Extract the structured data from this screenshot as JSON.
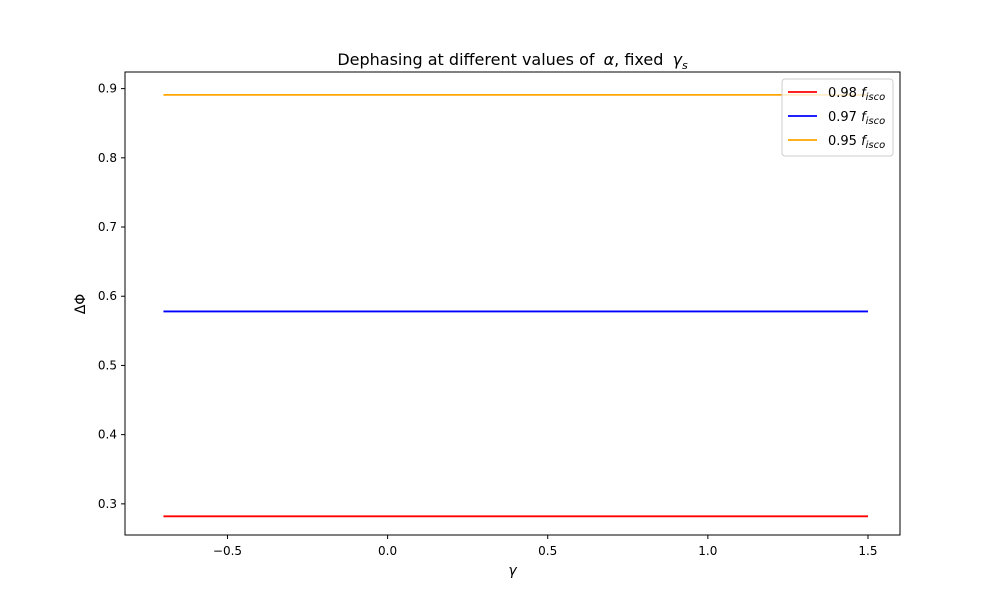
{
  "chart_data": {
    "type": "line",
    "title": "Dephasing at different values of",
    "title_symbol_alpha": "α",
    "title_middle": ", fixed",
    "title_symbol_gamma": "γ",
    "title_subscript": "s",
    "xlabel": "γ",
    "ylabel": "ΔΦ",
    "xlim": [
      -0.82,
      1.6
    ],
    "ylim": [
      0.255,
      0.924
    ],
    "xticks": [
      -0.5,
      0.0,
      0.5,
      1.0,
      1.5
    ],
    "xtick_labels": [
      "−0.5",
      "0.0",
      "0.5",
      "1.0",
      "1.5"
    ],
    "yticks": [
      0.3,
      0.4,
      0.5,
      0.6,
      0.7,
      0.8,
      0.9
    ],
    "ytick_labels": [
      "0.3",
      "0.4",
      "0.5",
      "0.6",
      "0.7",
      "0.8",
      "0.9"
    ],
    "grid": false,
    "legend_position": "top-right",
    "x": [
      -0.7,
      1.5
    ],
    "series": [
      {
        "name": "0.98",
        "label_symbol": "f",
        "label_subscript": "isco",
        "color": "#ff0000",
        "values": [
          0.282,
          0.282
        ]
      },
      {
        "name": "0.97",
        "label_symbol": "f",
        "label_subscript": "isco",
        "color": "#0000ff",
        "values": [
          0.578,
          0.578
        ]
      },
      {
        "name": "0.95",
        "label_symbol": "f",
        "label_subscript": "isco",
        "color": "#ffa500",
        "values": [
          0.891,
          0.891
        ]
      }
    ]
  }
}
